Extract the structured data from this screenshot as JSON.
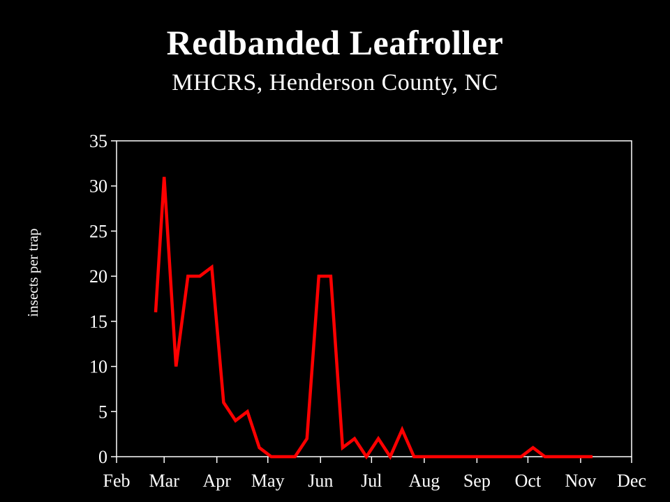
{
  "title": "Redbanded Leafroller",
  "subtitle": "MHCRS, Henderson County, NC",
  "colors": {
    "background": "#000000",
    "foreground": "#ffffff",
    "series": "#ff0000"
  },
  "chart_data": {
    "type": "line",
    "title": "Redbanded Leafroller",
    "subtitle": "MHCRS, Henderson County, NC",
    "xlabel": "",
    "ylabel": "insects per trap",
    "x_ticks": [
      "Feb",
      "Mar",
      "Apr",
      "May",
      "Jun",
      "Jul",
      "Aug",
      "Sep",
      "Oct",
      "Nov",
      "Dec"
    ],
    "y_ticks": [
      0,
      5,
      10,
      15,
      20,
      25,
      30,
      35
    ],
    "ylim": [
      0,
      35
    ],
    "xlim": [
      "Feb 1",
      "Dec 1"
    ],
    "grid": false,
    "legend": "none",
    "series": [
      {
        "color": "#ff0000",
        "x": [
          "Feb 24",
          "Mar 1",
          "Mar 8",
          "Mar 15",
          "Mar 22",
          "Mar 29",
          "Apr 5",
          "Apr 12",
          "Apr 19",
          "Apr 26",
          "May 3",
          "May 10",
          "May 17",
          "May 24",
          "May 31",
          "Jun 7",
          "Jun 14",
          "Jun 21",
          "Jun 28",
          "Jul 5",
          "Jul 12",
          "Jul 19",
          "Jul 26",
          "Aug 2",
          "Aug 9",
          "Aug 16",
          "Aug 23",
          "Aug 30",
          "Sep 6",
          "Sep 13",
          "Sep 20",
          "Sep 27",
          "Oct 4",
          "Oct 11",
          "Oct 18",
          "Oct 25",
          "Nov 1",
          "Nov 8"
        ],
        "values": [
          16,
          31,
          10,
          20,
          20,
          21,
          6,
          4,
          5,
          1,
          0,
          0,
          0,
          2,
          20,
          20,
          1,
          2,
          0,
          2,
          0,
          3,
          0,
          0,
          0,
          0,
          0,
          0,
          0,
          0,
          0,
          0,
          1,
          0,
          0,
          0,
          0,
          0
        ]
      }
    ]
  }
}
